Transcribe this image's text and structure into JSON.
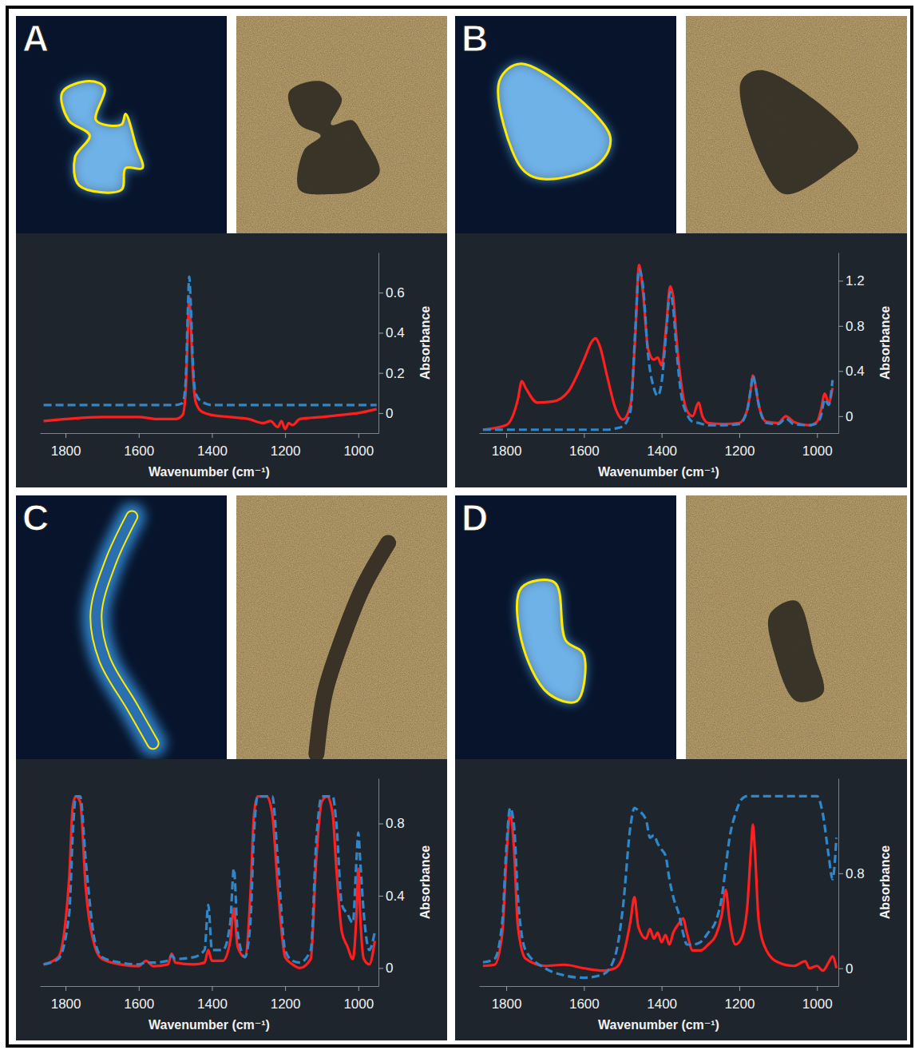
{
  "chart_data": [
    {
      "type": "line",
      "title": "A",
      "x_label": "Wavenumber (cm⁻¹)",
      "y_label": "Absorbance",
      "xlim": [
        1870,
        945
      ],
      "xticks": [
        1800,
        1600,
        1400,
        1200,
        1000
      ],
      "ylim": [
        -0.1,
        0.8
      ],
      "yticks": [
        0,
        0.2,
        0.4,
        0.6
      ],
      "x": [
        1860,
        1800,
        1700,
        1600,
        1550,
        1500,
        1480,
        1472,
        1466,
        1462,
        1458,
        1452,
        1445,
        1430,
        1400,
        1350,
        1300,
        1260,
        1240,
        1220,
        1210,
        1200,
        1190,
        1180,
        1160,
        1100,
        1050,
        1000,
        950
      ],
      "series": [
        {
          "color": "#ff1f1f",
          "line_style": "solid",
          "values": [
            -0.04,
            -0.03,
            -0.02,
            -0.02,
            -0.03,
            -0.03,
            -0.01,
            0.1,
            0.4,
            0.58,
            0.45,
            0.2,
            0.06,
            0.01,
            -0.01,
            -0.02,
            -0.03,
            -0.05,
            -0.04,
            -0.07,
            -0.04,
            -0.08,
            -0.05,
            -0.06,
            -0.03,
            -0.02,
            -0.01,
            0.0,
            0.02
          ]
        },
        {
          "color": "#2f86c8",
          "line_style": "dashed",
          "values": [
            0.04,
            0.04,
            0.04,
            0.04,
            0.04,
            0.04,
            0.05,
            0.15,
            0.5,
            0.68,
            0.55,
            0.25,
            0.1,
            0.06,
            0.04,
            0.04,
            0.04,
            0.04,
            0.04,
            0.04,
            0.04,
            0.04,
            0.04,
            0.04,
            0.04,
            0.04,
            0.04,
            0.04,
            0.04
          ]
        }
      ]
    },
    {
      "type": "line",
      "title": "B",
      "x_label": "Wavenumber (cm⁻¹)",
      "y_label": "Absorbance",
      "xlim": [
        1870,
        945
      ],
      "xticks": [
        1800,
        1600,
        1400,
        1200,
        1000
      ],
      "ylim": [
        -0.15,
        1.45
      ],
      "yticks": [
        0,
        0.4,
        0.8,
        1.2
      ],
      "x": [
        1860,
        1800,
        1770,
        1760,
        1750,
        1720,
        1680,
        1640,
        1600,
        1580,
        1570,
        1560,
        1540,
        1520,
        1500,
        1480,
        1468,
        1458,
        1448,
        1435,
        1420,
        1410,
        1400,
        1388,
        1378,
        1370,
        1362,
        1350,
        1335,
        1320,
        1305,
        1295,
        1280,
        1240,
        1200,
        1180,
        1170,
        1165,
        1160,
        1150,
        1130,
        1100,
        1080,
        1060,
        1020,
        1000,
        990,
        980,
        970,
        960
      ],
      "series": [
        {
          "color": "#ff1f1f",
          "line_style": "solid",
          "values": [
            -0.12,
            -0.08,
            0.15,
            0.31,
            0.25,
            0.12,
            0.13,
            0.22,
            0.5,
            0.66,
            0.69,
            0.63,
            0.35,
            0.08,
            -0.03,
            0.1,
            0.7,
            1.34,
            1.1,
            0.6,
            0.5,
            0.52,
            0.45,
            0.8,
            1.15,
            1.05,
            0.7,
            0.3,
            0.05,
            0.0,
            0.12,
            0.0,
            -0.06,
            -0.07,
            -0.06,
            0.05,
            0.25,
            0.36,
            0.3,
            0.1,
            -0.05,
            -0.06,
            0.0,
            -0.05,
            -0.08,
            -0.05,
            0.05,
            0.2,
            0.12,
            0.25
          ]
        },
        {
          "color": "#2f86c8",
          "line_style": "dashed",
          "values": [
            -0.12,
            -0.12,
            -0.12,
            -0.12,
            -0.12,
            -0.12,
            -0.12,
            -0.12,
            -0.12,
            -0.12,
            -0.12,
            -0.12,
            -0.12,
            -0.11,
            -0.09,
            0.05,
            0.75,
            1.3,
            1.15,
            0.55,
            0.25,
            0.18,
            0.3,
            0.75,
            1.1,
            0.95,
            0.6,
            0.2,
            0.02,
            -0.05,
            -0.06,
            -0.07,
            -0.08,
            -0.08,
            -0.07,
            0.05,
            0.25,
            0.36,
            0.3,
            0.1,
            -0.06,
            -0.07,
            -0.02,
            -0.07,
            -0.08,
            -0.06,
            0.0,
            0.15,
            0.1,
            0.32
          ]
        }
      ]
    },
    {
      "type": "line",
      "title": "C",
      "x_label": "Wavenumber (cm⁻¹)",
      "y_label": "Absorbance",
      "xlim": [
        1870,
        945
      ],
      "xticks": [
        1800,
        1600,
        1400,
        1200,
        1000
      ],
      "ylim": [
        -0.1,
        1.05
      ],
      "yticks": [
        0,
        0.4,
        0.8
      ],
      "x": [
        1860,
        1820,
        1790,
        1780,
        1772,
        1760,
        1745,
        1720,
        1700,
        1650,
        1600,
        1580,
        1560,
        1520,
        1510,
        1500,
        1450,
        1420,
        1410,
        1400,
        1370,
        1350,
        1340,
        1330,
        1310,
        1295,
        1285,
        1275,
        1250,
        1235,
        1220,
        1200,
        1180,
        1160,
        1130,
        1115,
        1100,
        1085,
        1070,
        1060,
        1045,
        1030,
        1015,
        1005,
        1000,
        995,
        985,
        970,
        955
      ],
      "series": [
        {
          "color": "#ff1f1f",
          "line_style": "solid",
          "values": [
            0.02,
            0.06,
            0.5,
            0.9,
            0.95,
            0.92,
            0.45,
            0.12,
            0.05,
            0.02,
            0.01,
            0.04,
            0.01,
            0.02,
            0.08,
            0.03,
            0.02,
            0.03,
            0.1,
            0.04,
            0.04,
            0.15,
            0.33,
            0.12,
            0.06,
            0.4,
            0.85,
            0.95,
            0.95,
            0.85,
            0.45,
            0.06,
            0.02,
            0.0,
            0.05,
            0.6,
            0.92,
            0.95,
            0.85,
            0.55,
            0.2,
            0.12,
            0.05,
            0.3,
            0.55,
            0.3,
            0.05,
            0.02,
            0.15
          ]
        },
        {
          "color": "#2f86c8",
          "line_style": "dashed",
          "values": [
            0.02,
            0.05,
            0.3,
            0.75,
            0.95,
            0.95,
            0.6,
            0.15,
            0.06,
            0.03,
            0.02,
            0.03,
            0.03,
            0.04,
            0.07,
            0.05,
            0.06,
            0.1,
            0.35,
            0.1,
            0.1,
            0.25,
            0.55,
            0.2,
            0.06,
            0.25,
            0.75,
            0.95,
            0.95,
            0.95,
            0.6,
            0.1,
            0.04,
            0.03,
            0.1,
            0.7,
            0.95,
            0.95,
            0.95,
            0.8,
            0.35,
            0.3,
            0.25,
            0.6,
            0.75,
            0.6,
            0.3,
            0.1,
            0.2
          ]
        }
      ]
    },
    {
      "type": "line",
      "title": "D",
      "x_label": "Wavenumber (cm⁻¹)",
      "y_label": "Absorbance",
      "xlim": [
        1870,
        945
      ],
      "xticks": [
        1800,
        1600,
        1400,
        1200,
        1000
      ],
      "ylim": [
        -0.15,
        1.6
      ],
      "yticks": [
        0,
        0.8
      ],
      "x": [
        1860,
        1830,
        1810,
        1800,
        1790,
        1780,
        1770,
        1750,
        1700,
        1650,
        1600,
        1550,
        1520,
        1500,
        1480,
        1470,
        1460,
        1440,
        1430,
        1420,
        1410,
        1400,
        1390,
        1380,
        1370,
        1355,
        1345,
        1335,
        1320,
        1300,
        1280,
        1260,
        1245,
        1235,
        1225,
        1210,
        1195,
        1180,
        1170,
        1165,
        1160,
        1150,
        1130,
        1100,
        1060,
        1030,
        1020,
        1000,
        985,
        970,
        960,
        950
      ],
      "series": [
        {
          "color": "#ff1f1f",
          "line_style": "solid",
          "values": [
            0.02,
            0.03,
            0.3,
            0.9,
            1.3,
            1.0,
            0.35,
            0.08,
            0.02,
            0.03,
            0.0,
            -0.02,
            0.0,
            0.1,
            0.4,
            0.6,
            0.35,
            0.25,
            0.33,
            0.25,
            0.3,
            0.22,
            0.28,
            0.2,
            0.3,
            0.38,
            0.42,
            0.3,
            0.15,
            0.15,
            0.2,
            0.28,
            0.45,
            0.66,
            0.4,
            0.2,
            0.25,
            0.5,
            1.0,
            1.21,
            1.0,
            0.4,
            0.15,
            0.05,
            0.02,
            0.06,
            0.0,
            0.02,
            -0.02,
            0.05,
            0.1,
            0.0
          ]
        },
        {
          "color": "#2f86c8",
          "line_style": "dashed",
          "values": [
            0.05,
            0.08,
            0.4,
            1.0,
            1.35,
            1.2,
            0.6,
            0.15,
            0.0,
            -0.06,
            -0.08,
            -0.05,
            0.1,
            0.5,
            1.2,
            1.35,
            1.33,
            1.25,
            1.1,
            1.12,
            1.05,
            1.0,
            0.95,
            0.75,
            0.6,
            0.45,
            0.3,
            0.2,
            0.2,
            0.22,
            0.3,
            0.4,
            0.6,
            0.85,
            1.1,
            1.3,
            1.42,
            1.45,
            1.45,
            1.45,
            1.45,
            1.45,
            1.45,
            1.45,
            1.45,
            1.45,
            1.45,
            1.45,
            1.3,
            0.95,
            0.75,
            1.1
          ]
        }
      ]
    }
  ]
}
